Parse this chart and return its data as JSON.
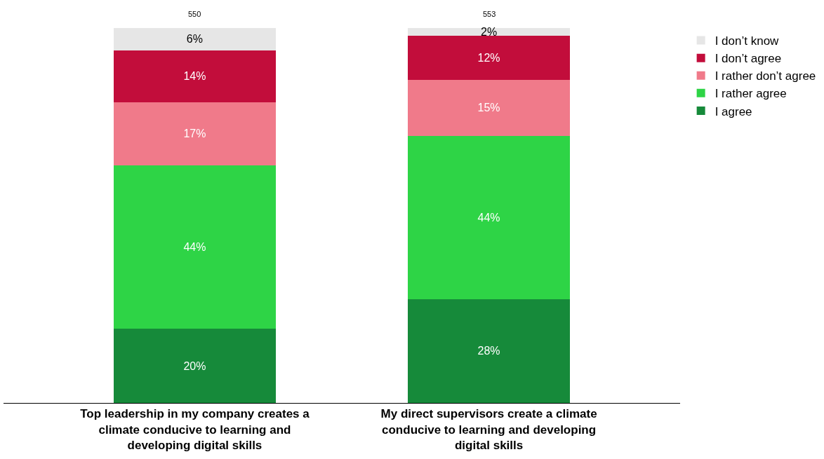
{
  "chart_data": {
    "type": "bar",
    "stacked": true,
    "legend": "top right",
    "categories": [
      "Top leadership in my company creates a climate conducive to learning and developing digital skills",
      "My direct supervisors create a climate conducive to learning and developing digital skills"
    ],
    "series": [
      {
        "name": "I agree",
        "color": "#168a3a",
        "values": [
          20,
          28
        ],
        "value_labels": [
          "20%",
          "28%"
        ]
      },
      {
        "name": "I rather agree",
        "color": "#2ed446",
        "values": [
          44,
          44
        ],
        "value_labels": [
          "44%",
          "44%"
        ]
      },
      {
        "name": "I rather don’t agree",
        "color": "#f07a8a",
        "values": [
          17,
          15
        ],
        "value_labels": [
          "17%",
          "15%"
        ]
      },
      {
        "name": "I don’t agree",
        "color": "#c20d3b",
        "values": [
          14,
          12
        ],
        "value_labels": [
          "14%",
          "12%"
        ]
      },
      {
        "name": "I don’t know",
        "color": "#e6e6e6",
        "values": [
          6,
          2
        ],
        "value_labels": [
          "6%",
          "2%"
        ]
      }
    ],
    "annotations": [
      "550",
      "553"
    ]
  }
}
